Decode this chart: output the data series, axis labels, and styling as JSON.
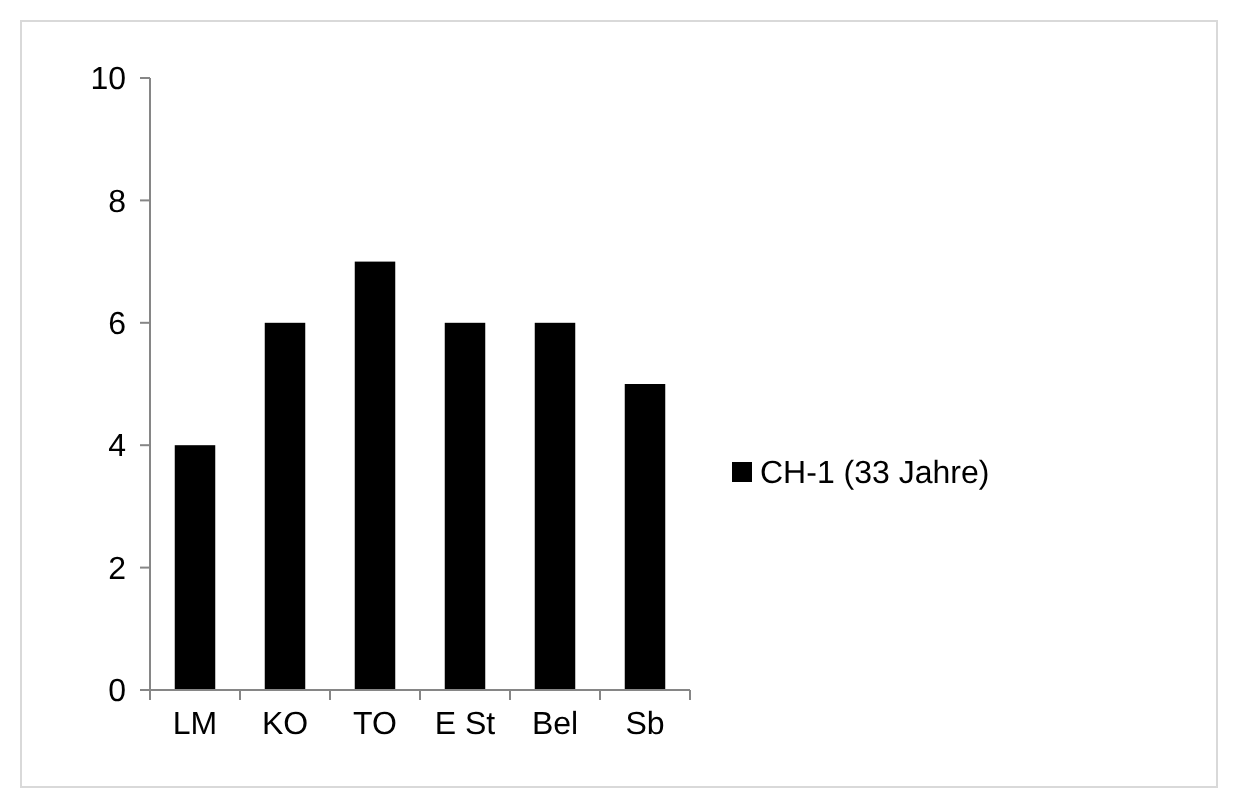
{
  "chart_data": {
    "type": "bar",
    "categories": [
      "LM",
      "KO",
      "TO",
      "E St",
      "Bel",
      "Sb"
    ],
    "series": [
      {
        "name": "CH-1 (33 Jahre)",
        "color": "#000000",
        "values": [
          4,
          6,
          7,
          6,
          6,
          5
        ]
      }
    ],
    "ylim": [
      0,
      10
    ],
    "yticks": [
      0,
      2,
      4,
      6,
      8,
      10
    ],
    "grid": false,
    "legend": "right"
  }
}
